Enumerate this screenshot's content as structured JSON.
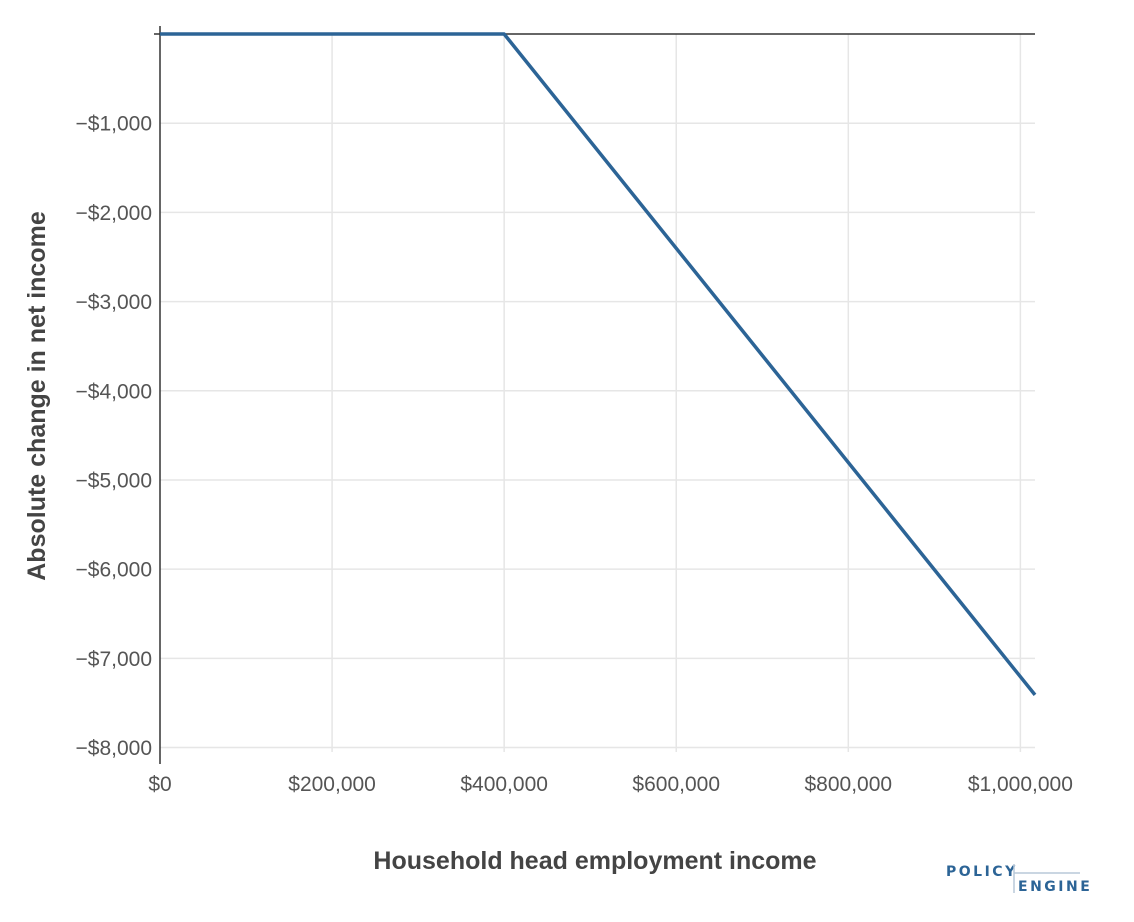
{
  "chart_data": {
    "type": "line",
    "xlabel": "Household head employment income",
    "ylabel": "Absolute change in net income",
    "xlim": [
      0,
      1017000
    ],
    "ylim": [
      -8050,
      0
    ],
    "x_ticks": [
      {
        "value": 0,
        "label": "$0"
      },
      {
        "value": 200000,
        "label": "$200,000"
      },
      {
        "value": 400000,
        "label": "$400,000"
      },
      {
        "value": 600000,
        "label": "$600,000"
      },
      {
        "value": 800000,
        "label": "$800,000"
      },
      {
        "value": 1000000,
        "label": "$1,000,000"
      }
    ],
    "y_ticks": [
      {
        "value": -1000,
        "label": "−$1,000"
      },
      {
        "value": -2000,
        "label": "−$2,000"
      },
      {
        "value": -3000,
        "label": "−$3,000"
      },
      {
        "value": -4000,
        "label": "−$4,000"
      },
      {
        "value": -5000,
        "label": "−$5,000"
      },
      {
        "value": -6000,
        "label": "−$6,000"
      },
      {
        "value": -7000,
        "label": "−$7,000"
      },
      {
        "value": -8000,
        "label": "−$8,000"
      }
    ],
    "grid": true,
    "series": [
      {
        "color": "#2c6496",
        "x": [
          0,
          400000,
          1017000
        ],
        "y": [
          0,
          0,
          -7410
        ]
      }
    ],
    "colors": {
      "line": "#2c6496",
      "grid": "#e6e6e6",
      "axis": "#333333",
      "text": "#555555",
      "title": "#444444"
    }
  },
  "logo": {
    "line1": "POLICY",
    "line2": "ENGINE",
    "color": "#2c6496",
    "rule_color": "#b8c8d8"
  }
}
